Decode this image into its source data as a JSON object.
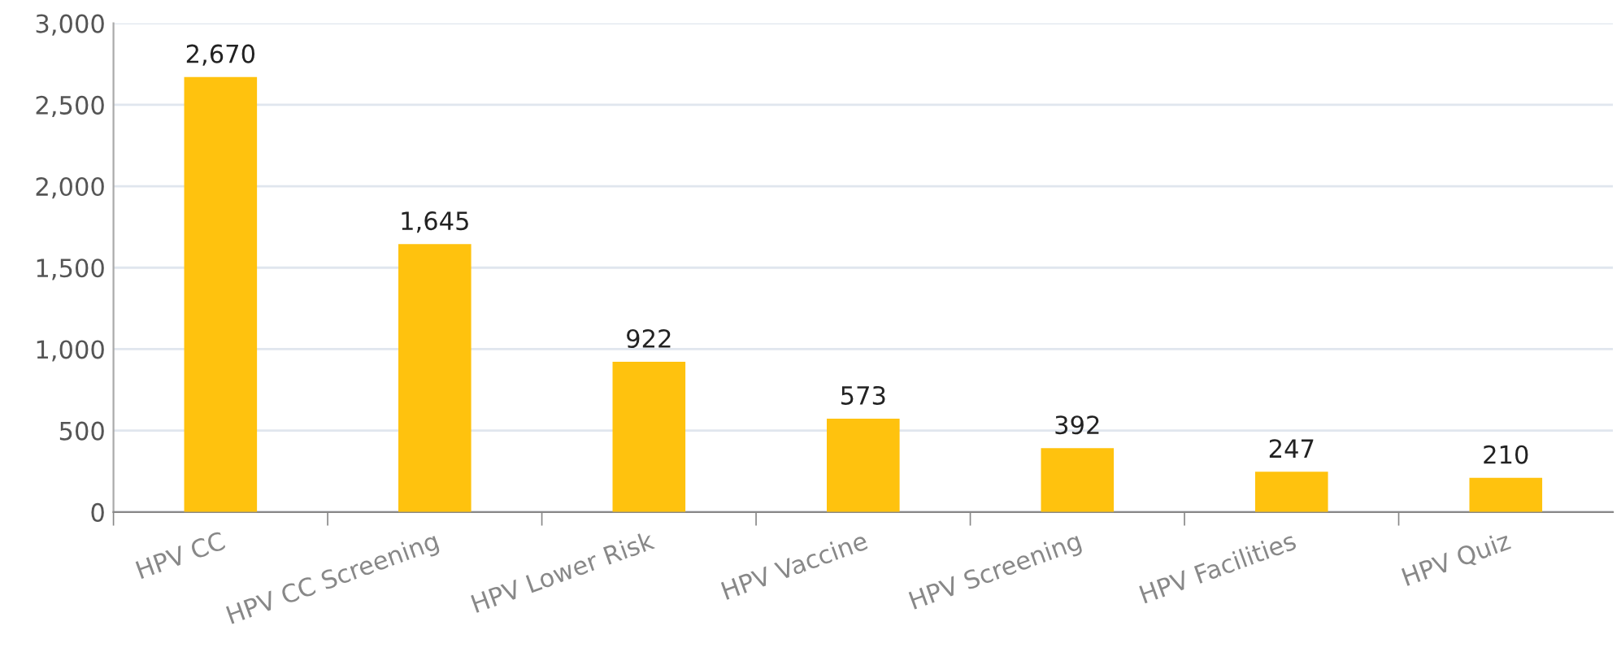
{
  "chart_data": {
    "type": "bar",
    "categories": [
      "HPV CC",
      "HPV CC Screening",
      "HPV Lower Risk",
      "HPV Vaccine",
      "HPV Screening",
      "HPV Facilities",
      "HPV Quiz"
    ],
    "values": [
      2670,
      1645,
      922,
      573,
      392,
      247,
      210
    ],
    "value_labels": [
      "2,670",
      "1,645",
      "922",
      "573",
      "392",
      "247",
      "210"
    ],
    "color": "#ffc20e",
    "ylim": [
      0,
      3000
    ],
    "yticks": [
      0,
      {
        "value": 500,
        "label": "500"
      },
      {
        "value": 1000,
        "label": "1,000"
      },
      {
        "value": 1500,
        "label": "1,500"
      },
      {
        "value": 2000,
        "label": "2,000"
      },
      {
        "value": 2500,
        "label": "2,500"
      },
      {
        "value": 3000,
        "label": "3,000"
      }
    ],
    "grid": "y",
    "legend": false
  }
}
